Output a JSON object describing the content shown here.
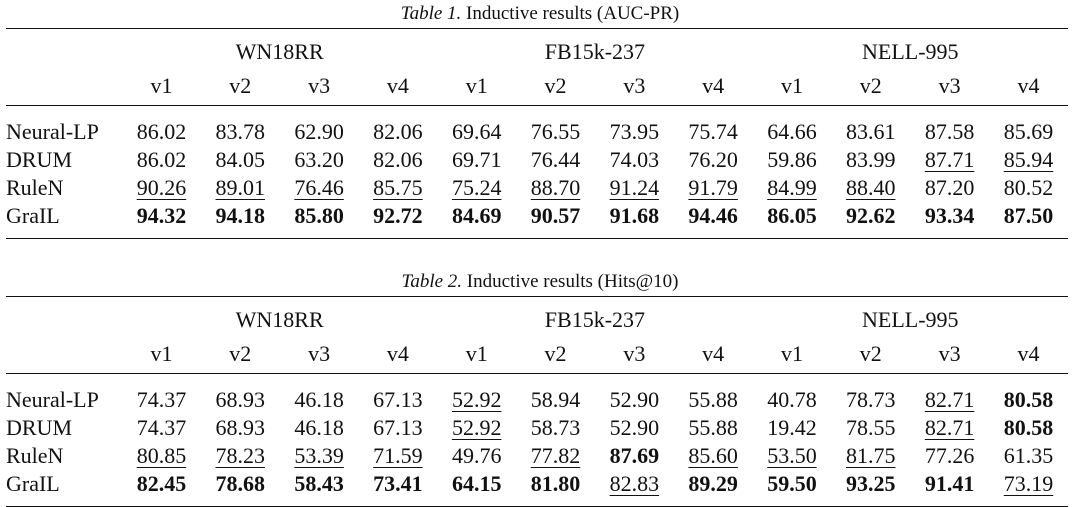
{
  "tables": [
    {
      "caption_label": "Table 1.",
      "caption_text": "Inductive results (AUC-PR)",
      "groups": [
        "WN18RR",
        "FB15k-237",
        "NELL-995"
      ],
      "versions": [
        "v1",
        "v2",
        "v3",
        "v4",
        "v1",
        "v2",
        "v3",
        "v4",
        "v1",
        "v2",
        "v3",
        "v4"
      ],
      "rows": [
        {
          "method": "Neural-LP",
          "cells": [
            {
              "v": "86.02"
            },
            {
              "v": "83.78"
            },
            {
              "v": "62.90"
            },
            {
              "v": "82.06"
            },
            {
              "v": "69.64"
            },
            {
              "v": "76.55"
            },
            {
              "v": "73.95"
            },
            {
              "v": "75.74"
            },
            {
              "v": "64.66"
            },
            {
              "v": "83.61"
            },
            {
              "v": "87.58"
            },
            {
              "v": "85.69"
            }
          ]
        },
        {
          "method": "DRUM",
          "cells": [
            {
              "v": "86.02"
            },
            {
              "v": "84.05"
            },
            {
              "v": "63.20"
            },
            {
              "v": "82.06"
            },
            {
              "v": "69.71"
            },
            {
              "v": "76.44"
            },
            {
              "v": "74.03"
            },
            {
              "v": "76.20"
            },
            {
              "v": "59.86"
            },
            {
              "v": "83.99"
            },
            {
              "v": "87.71",
              "s": "u"
            },
            {
              "v": "85.94",
              "s": "u"
            }
          ]
        },
        {
          "method": "RuleN",
          "cells": [
            {
              "v": "90.26",
              "s": "u"
            },
            {
              "v": "89.01",
              "s": "u"
            },
            {
              "v": "76.46",
              "s": "u"
            },
            {
              "v": "85.75",
              "s": "u"
            },
            {
              "v": "75.24",
              "s": "u"
            },
            {
              "v": "88.70",
              "s": "u"
            },
            {
              "v": "91.24",
              "s": "u"
            },
            {
              "v": "91.79",
              "s": "u"
            },
            {
              "v": "84.99",
              "s": "u"
            },
            {
              "v": "88.40",
              "s": "u"
            },
            {
              "v": "87.20"
            },
            {
              "v": "80.52"
            }
          ]
        },
        {
          "method": "GraIL",
          "cells": [
            {
              "v": "94.32",
              "s": "b"
            },
            {
              "v": "94.18",
              "s": "b"
            },
            {
              "v": "85.80",
              "s": "b"
            },
            {
              "v": "92.72",
              "s": "b"
            },
            {
              "v": "84.69",
              "s": "b"
            },
            {
              "v": "90.57",
              "s": "b"
            },
            {
              "v": "91.68",
              "s": "b"
            },
            {
              "v": "94.46",
              "s": "b"
            },
            {
              "v": "86.05",
              "s": "b"
            },
            {
              "v": "92.62",
              "s": "b"
            },
            {
              "v": "93.34",
              "s": "b"
            },
            {
              "v": "87.50",
              "s": "b"
            }
          ]
        }
      ]
    },
    {
      "caption_label": "Table 2.",
      "caption_text": "Inductive results (Hits@10)",
      "groups": [
        "WN18RR",
        "FB15k-237",
        "NELL-995"
      ],
      "versions": [
        "v1",
        "v2",
        "v3",
        "v4",
        "v1",
        "v2",
        "v3",
        "v4",
        "v1",
        "v2",
        "v3",
        "v4"
      ],
      "rows": [
        {
          "method": "Neural-LP",
          "cells": [
            {
              "v": "74.37"
            },
            {
              "v": "68.93"
            },
            {
              "v": "46.18"
            },
            {
              "v": "67.13"
            },
            {
              "v": "52.92",
              "s": "u"
            },
            {
              "v": "58.94"
            },
            {
              "v": "52.90"
            },
            {
              "v": "55.88"
            },
            {
              "v": "40.78"
            },
            {
              "v": "78.73"
            },
            {
              "v": "82.71",
              "s": "u"
            },
            {
              "v": "80.58",
              "s": "b"
            }
          ]
        },
        {
          "method": "DRUM",
          "cells": [
            {
              "v": "74.37"
            },
            {
              "v": "68.93"
            },
            {
              "v": "46.18"
            },
            {
              "v": "67.13"
            },
            {
              "v": "52.92",
              "s": "u"
            },
            {
              "v": "58.73"
            },
            {
              "v": "52.90"
            },
            {
              "v": "55.88"
            },
            {
              "v": "19.42"
            },
            {
              "v": "78.55"
            },
            {
              "v": "82.71",
              "s": "u"
            },
            {
              "v": "80.58",
              "s": "b"
            }
          ]
        },
        {
          "method": "RuleN",
          "cells": [
            {
              "v": "80.85",
              "s": "u"
            },
            {
              "v": "78.23",
              "s": "u"
            },
            {
              "v": "53.39",
              "s": "u"
            },
            {
              "v": "71.59",
              "s": "u"
            },
            {
              "v": "49.76"
            },
            {
              "v": "77.82",
              "s": "u"
            },
            {
              "v": "87.69",
              "s": "b"
            },
            {
              "v": "85.60",
              "s": "u"
            },
            {
              "v": "53.50",
              "s": "u"
            },
            {
              "v": "81.75",
              "s": "u"
            },
            {
              "v": "77.26"
            },
            {
              "v": "61.35"
            }
          ]
        },
        {
          "method": "GraIL",
          "cells": [
            {
              "v": "82.45",
              "s": "b"
            },
            {
              "v": "78.68",
              "s": "b"
            },
            {
              "v": "58.43",
              "s": "b"
            },
            {
              "v": "73.41",
              "s": "b"
            },
            {
              "v": "64.15",
              "s": "b"
            },
            {
              "v": "81.80",
              "s": "b"
            },
            {
              "v": "82.83",
              "s": "u"
            },
            {
              "v": "89.29",
              "s": "b"
            },
            {
              "v": "59.50",
              "s": "b"
            },
            {
              "v": "93.25",
              "s": "b"
            },
            {
              "v": "91.41",
              "s": "b"
            },
            {
              "v": "73.19",
              "s": "u"
            }
          ]
        }
      ]
    }
  ]
}
